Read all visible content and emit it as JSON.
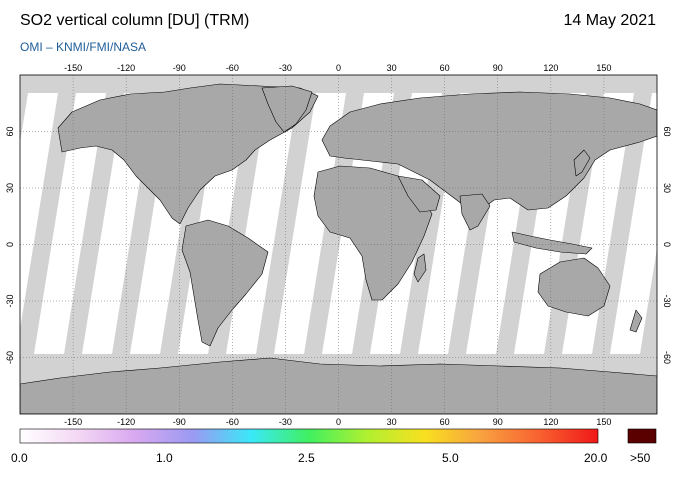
{
  "header": {
    "title": "SO2 vertical column [DU] (TRM)",
    "date": "14 May 2021",
    "credit": "OMI  –  KNMI/FMI/NASA"
  },
  "map": {
    "projection": "equirectangular",
    "lon_range": [
      -180,
      180
    ],
    "lat_range": [
      -90,
      90
    ],
    "lon_ticks": [
      "-150",
      "-120",
      "-90",
      "-60",
      "-30",
      "0",
      "30",
      "60",
      "90",
      "120",
      "150"
    ],
    "lat_ticks": [
      "60",
      "30",
      "0",
      "-30",
      "-60"
    ],
    "colors": {
      "background_no_data": "#d2d2d2",
      "land_no_data": "#a8a8a8",
      "swath": "#ffffff",
      "coastline": "#000000",
      "grid": "#666666"
    }
  },
  "colorbar": {
    "labels": [
      "0.0",
      "1.0",
      "2.5",
      "5.0",
      "20.0"
    ],
    "overflow_label": ">50",
    "overflow_color": "#5a0000",
    "stops": [
      "#ffffff",
      "#f4d8f4",
      "#d8a8f0",
      "#9a9af2",
      "#3ae8f8",
      "#40f060",
      "#b0f030",
      "#f8e020",
      "#f8a040",
      "#f86030",
      "#f01818"
    ]
  }
}
